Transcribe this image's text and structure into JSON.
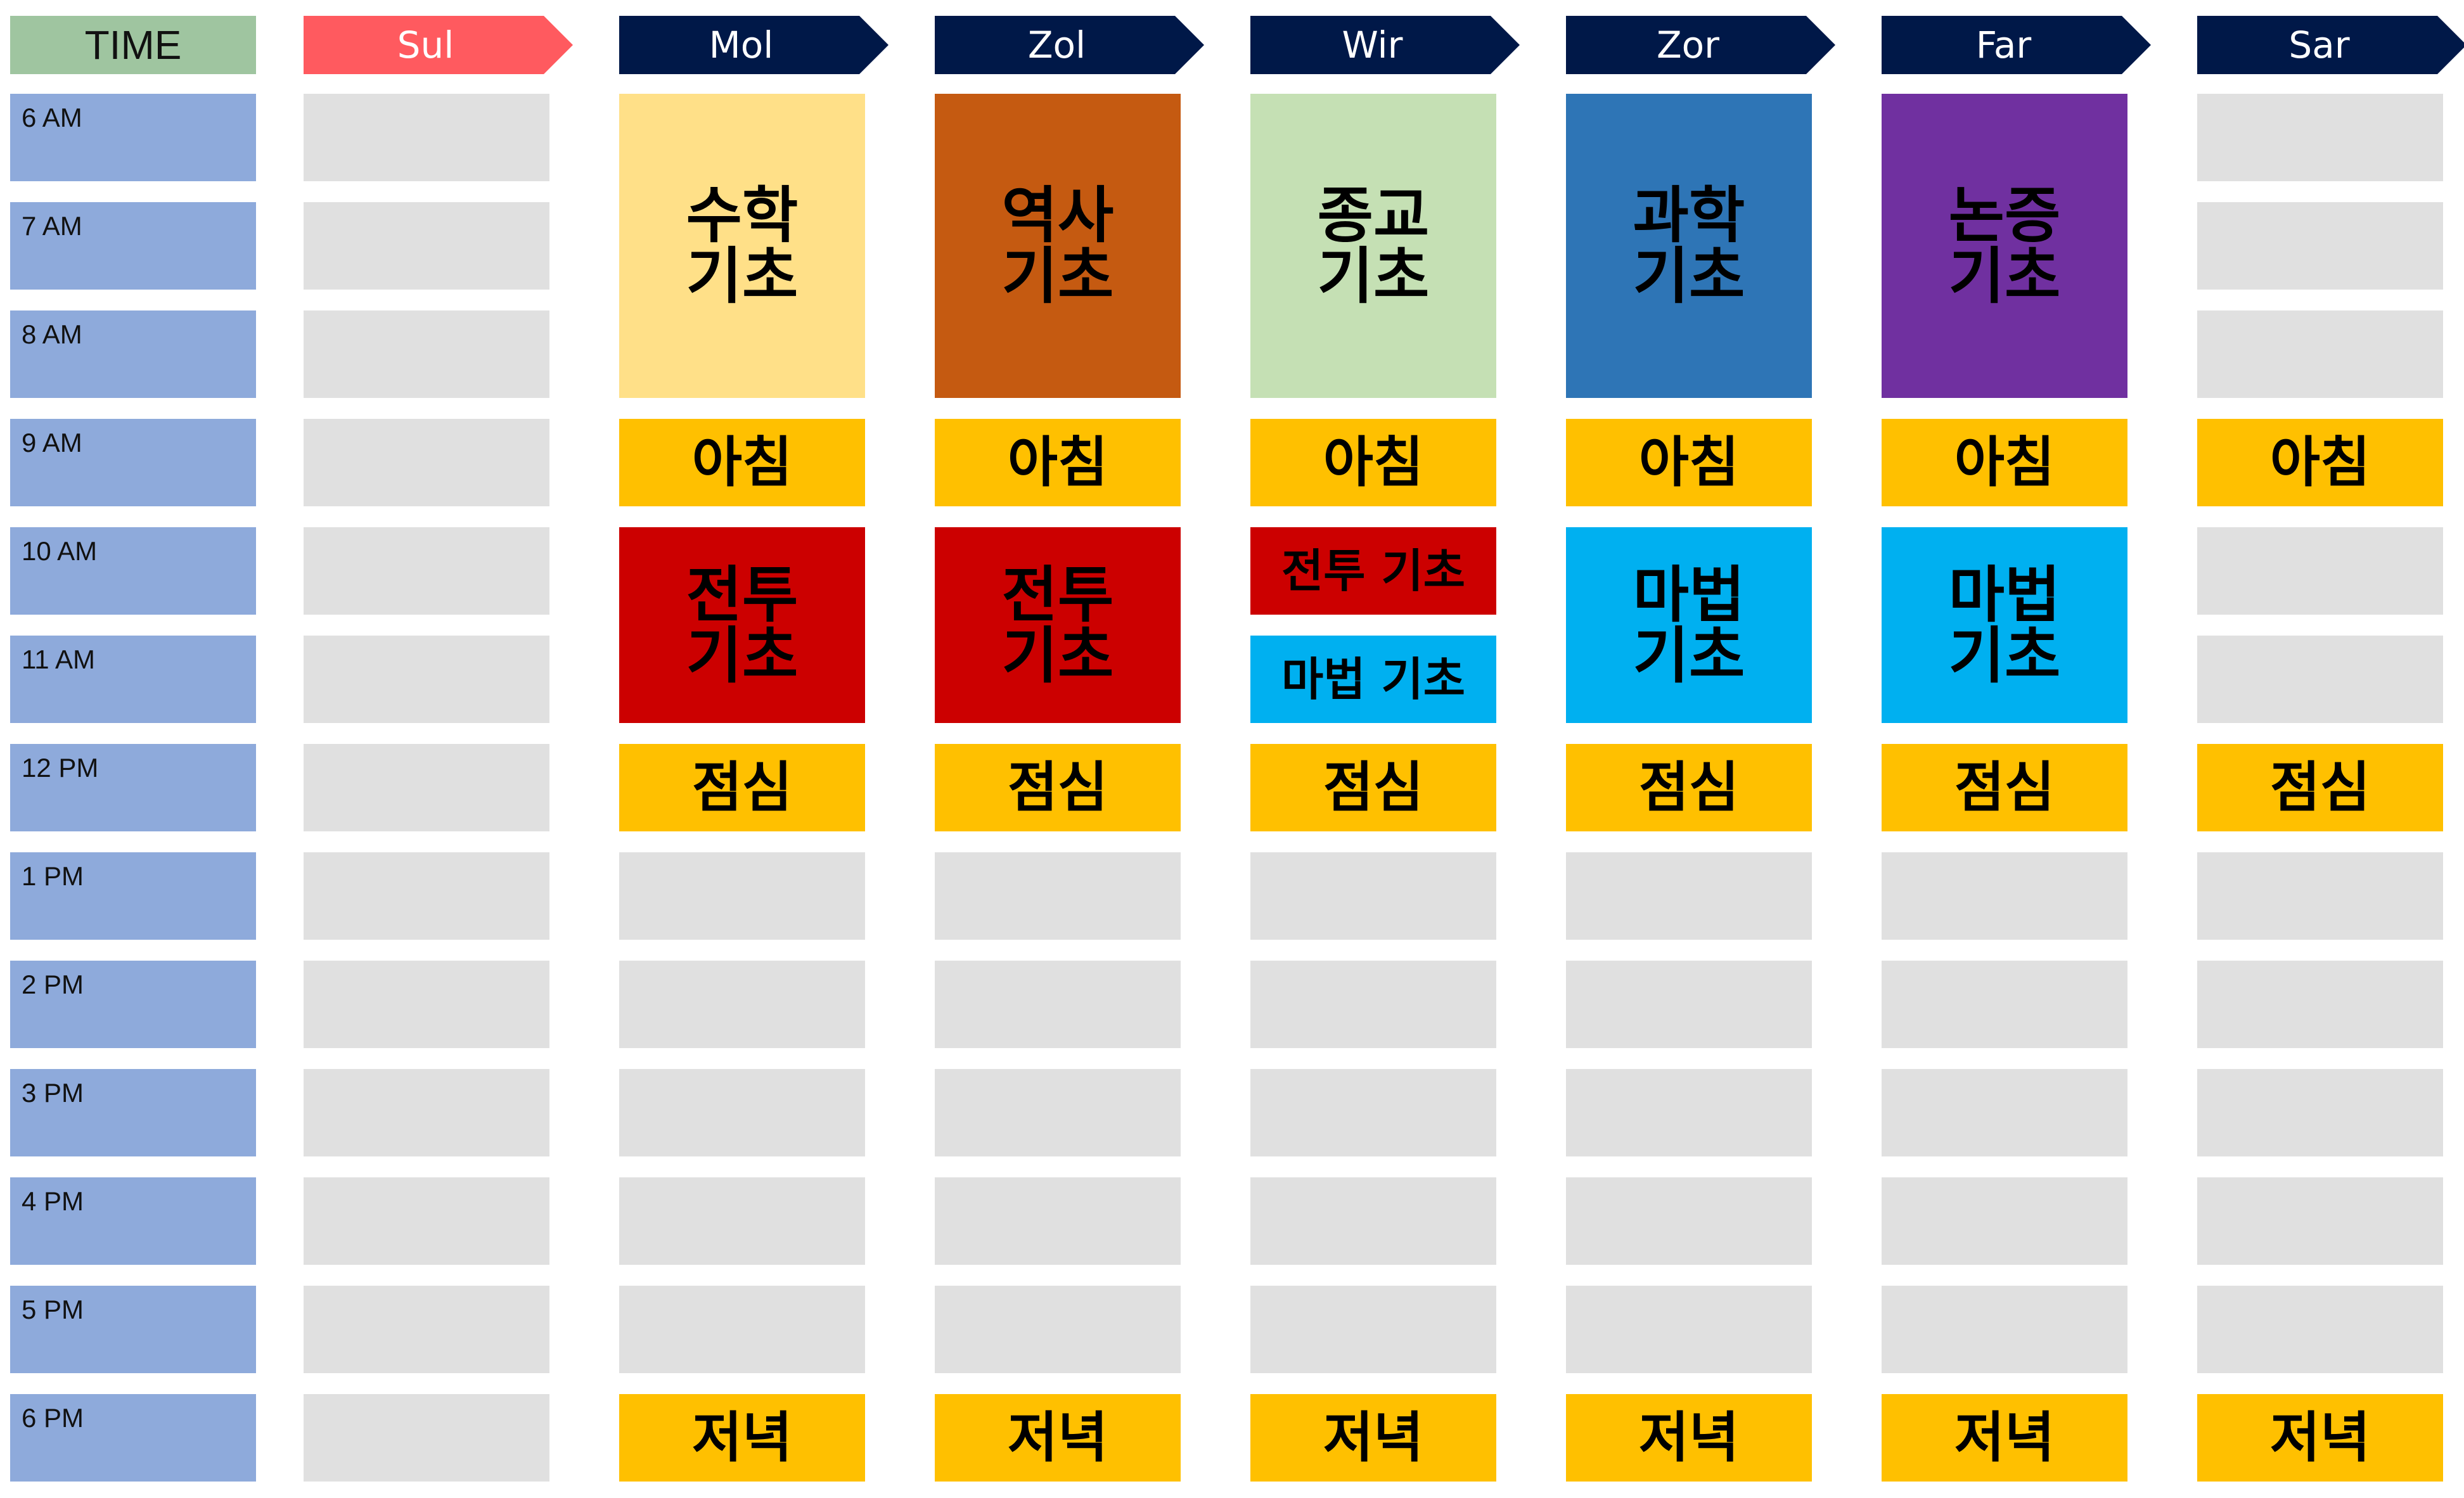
{
  "time_header": "TIME",
  "times": [
    "6 AM",
    "7 AM",
    "8 AM",
    "9 AM",
    "10 AM",
    "11 AM",
    "12 PM",
    "1 PM",
    "2 PM",
    "3 PM",
    "4 PM",
    "5 PM",
    "6 PM"
  ],
  "colors": {
    "time_header_bg": "#9fc5a0",
    "time_cell_bg": "#8eaadb",
    "empty_slot": "#e0e0e0",
    "meal": "#ffc000",
    "sul_header": "#ff5a5f",
    "day_header": "#001848"
  },
  "days": [
    {
      "name": "Sul",
      "header_color": "#ff5a5f",
      "blocks": []
    },
    {
      "name": "Mol",
      "header_color": "#001848",
      "blocks": [
        {
          "start": 0,
          "span": 3,
          "label": "수학\n기초",
          "color": "#ffe088",
          "size": "big"
        },
        {
          "start": 3,
          "span": 1,
          "label": "아침",
          "color": "#ffc000",
          "size": "meal"
        },
        {
          "start": 4,
          "span": 2,
          "label": "전투\n기초",
          "color": "#cc0000",
          "size": "big"
        },
        {
          "start": 6,
          "span": 1,
          "label": "점심",
          "color": "#ffc000",
          "size": "meal"
        },
        {
          "start": 12,
          "span": 1,
          "label": "저녁",
          "color": "#ffc000",
          "size": "meal"
        }
      ]
    },
    {
      "name": "Zol",
      "header_color": "#001848",
      "blocks": [
        {
          "start": 0,
          "span": 3,
          "label": "역사\n기초",
          "color": "#c55a11",
          "size": "big"
        },
        {
          "start": 3,
          "span": 1,
          "label": "아침",
          "color": "#ffc000",
          "size": "meal"
        },
        {
          "start": 4,
          "span": 2,
          "label": "전투\n기초",
          "color": "#cc0000",
          "size": "big"
        },
        {
          "start": 6,
          "span": 1,
          "label": "점심",
          "color": "#ffc000",
          "size": "meal"
        },
        {
          "start": 12,
          "span": 1,
          "label": "저녁",
          "color": "#ffc000",
          "size": "meal"
        }
      ]
    },
    {
      "name": "Wir",
      "header_color": "#001848",
      "blocks": [
        {
          "start": 0,
          "span": 3,
          "label": "종교\n기초",
          "color": "#c5e0b4",
          "size": "big"
        },
        {
          "start": 3,
          "span": 1,
          "label": "아침",
          "color": "#ffc000",
          "size": "meal"
        },
        {
          "start": 4,
          "span": 1,
          "label": "전투 기초",
          "color": "#cc0000",
          "size": "small"
        },
        {
          "start": 5,
          "span": 1,
          "label": "마법 기초",
          "color": "#00b0f0",
          "size": "small"
        },
        {
          "start": 6,
          "span": 1,
          "label": "점심",
          "color": "#ffc000",
          "size": "meal"
        },
        {
          "start": 12,
          "span": 1,
          "label": "저녁",
          "color": "#ffc000",
          "size": "meal"
        }
      ]
    },
    {
      "name": "Zor",
      "header_color": "#001848",
      "blocks": [
        {
          "start": 0,
          "span": 3,
          "label": "과학\n기초",
          "color": "#2e75b6",
          "size": "big"
        },
        {
          "start": 3,
          "span": 1,
          "label": "아침",
          "color": "#ffc000",
          "size": "meal"
        },
        {
          "start": 4,
          "span": 2,
          "label": "마법\n기초",
          "color": "#00b0f0",
          "size": "big"
        },
        {
          "start": 6,
          "span": 1,
          "label": "점심",
          "color": "#ffc000",
          "size": "meal"
        },
        {
          "start": 12,
          "span": 1,
          "label": "저녁",
          "color": "#ffc000",
          "size": "meal"
        }
      ]
    },
    {
      "name": "Far",
      "header_color": "#001848",
      "blocks": [
        {
          "start": 0,
          "span": 3,
          "label": "논증\n기초",
          "color": "#7030a0",
          "size": "big"
        },
        {
          "start": 3,
          "span": 1,
          "label": "아침",
          "color": "#ffc000",
          "size": "meal"
        },
        {
          "start": 4,
          "span": 2,
          "label": "마법\n기초",
          "color": "#00b0f0",
          "size": "big"
        },
        {
          "start": 6,
          "span": 1,
          "label": "점심",
          "color": "#ffc000",
          "size": "meal"
        },
        {
          "start": 12,
          "span": 1,
          "label": "저녁",
          "color": "#ffc000",
          "size": "meal"
        }
      ]
    },
    {
      "name": "Sar",
      "header_color": "#001848",
      "blocks": [
        {
          "start": 3,
          "span": 1,
          "label": "아침",
          "color": "#ffc000",
          "size": "meal"
        },
        {
          "start": 6,
          "span": 1,
          "label": "점심",
          "color": "#ffc000",
          "size": "meal"
        },
        {
          "start": 12,
          "span": 1,
          "label": "저녁",
          "color": "#ffc000",
          "size": "meal"
        }
      ]
    }
  ]
}
